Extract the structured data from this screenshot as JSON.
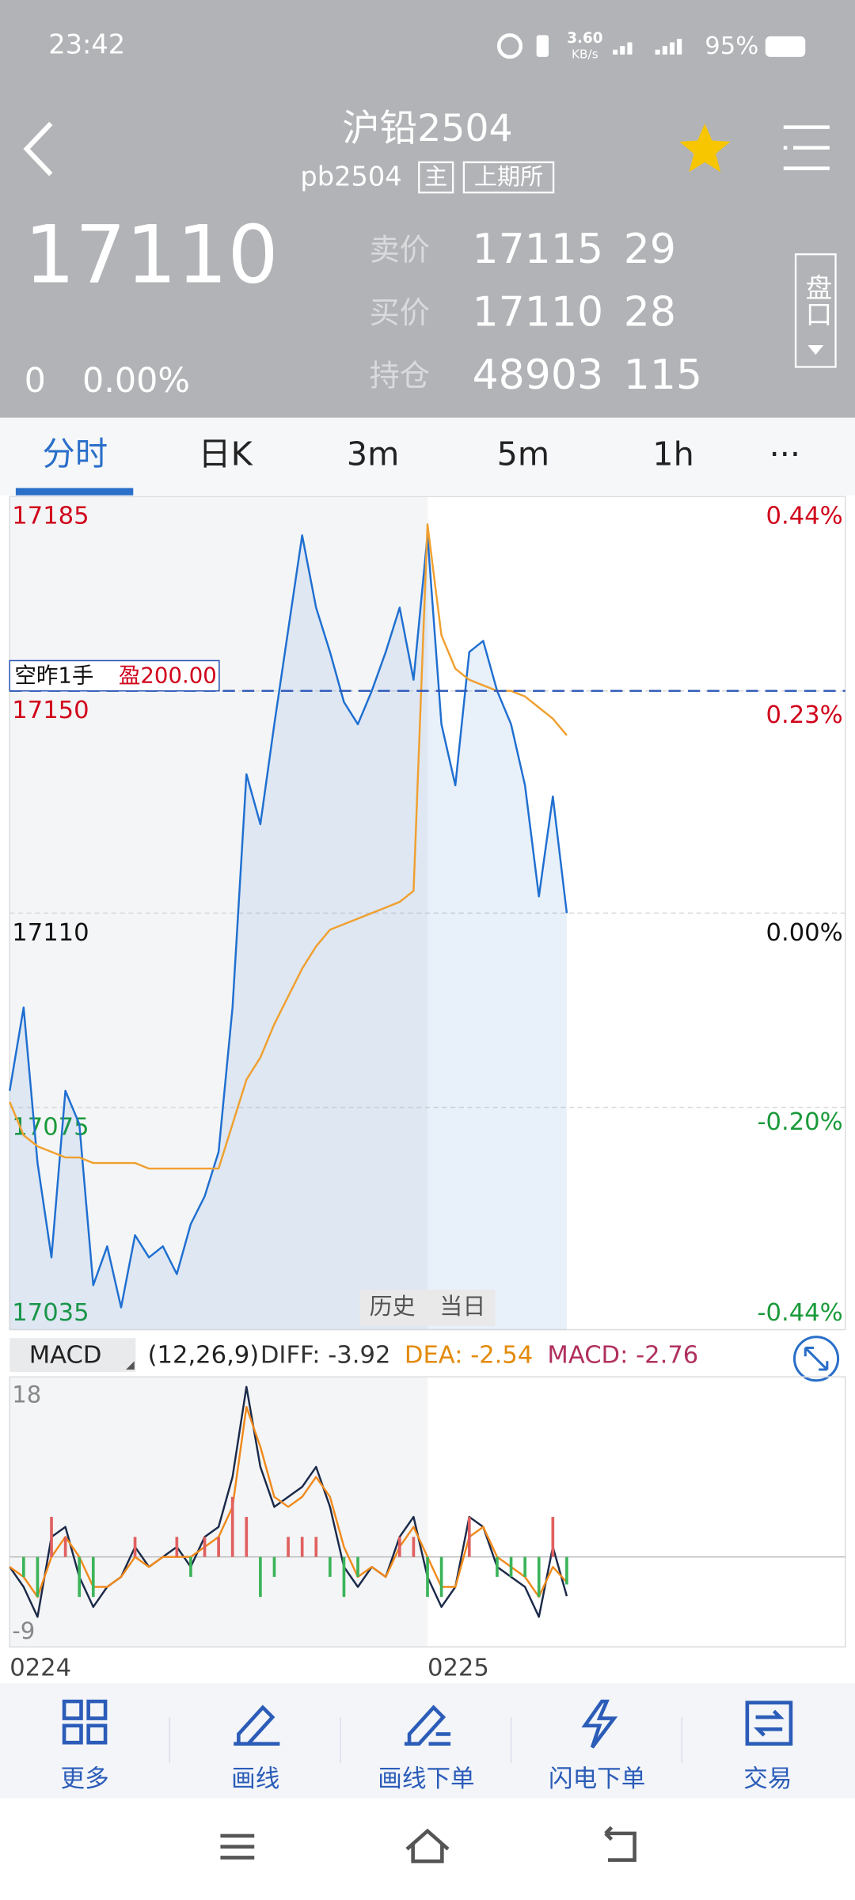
{
  "status_bar": {
    "time": "23:42",
    "speed": "3.60",
    "speed_unit": "KB/s",
    "battery": "95%"
  },
  "header": {
    "title": "沪铅2504",
    "code": "pb2504",
    "badges": [
      "主",
      "上期所"
    ],
    "side_button": "盘口"
  },
  "quote": {
    "last": "17110",
    "change": "0",
    "change_pct": "0.00%",
    "rows": [
      {
        "label": "卖价",
        "price": "17115",
        "qty": "29"
      },
      {
        "label": "买价",
        "price": "17110",
        "qty": "28"
      },
      {
        "label": "持仓",
        "price": "48903",
        "qty": "115"
      }
    ]
  },
  "tabs": [
    "分时",
    "日K",
    "3m",
    "5m",
    "1h",
    "···"
  ],
  "chart_data": [
    {
      "type": "line",
      "ylim": [
        17035,
        17185
      ],
      "yticks": [
        17185,
        17150,
        17110,
        17075,
        17035
      ],
      "y2lim": [
        -0.44,
        0.44
      ],
      "y2ticks": [
        {
          "value": 0.44,
          "label": "0.44%"
        },
        {
          "value": 0.23,
          "label": "0.23%"
        },
        {
          "value": 0,
          "label": "0.00%"
        },
        {
          "value": -0.2,
          "label": "-0.20%"
        },
        {
          "value": -0.44,
          "label": "-0.44%"
        }
      ],
      "grid": true,
      "up_color": "#d0021b",
      "down_color": "#1a9a3a",
      "series": [
        {
          "color": "#1f6fd1",
          "values": [
            17078,
            17093,
            17065,
            17048,
            17078,
            17072,
            17043,
            17050,
            17039,
            17052,
            17048,
            17050,
            17045,
            17054,
            17059,
            17067,
            17093,
            17135,
            17126,
            17144,
            17161,
            17178,
            17165,
            17157,
            17148,
            17144,
            17150,
            17157,
            17165,
            17152,
            17178,
            17144,
            17133,
            17157,
            17159,
            17150,
            17144,
            17133,
            17113,
            17131,
            17110,
            null,
            null,
            null,
            null,
            null,
            null,
            null,
            null,
            null,
            null,
            null,
            null,
            null,
            null,
            null,
            null,
            null,
            null,
            null
          ]
        },
        {
          "color": "#f0a030",
          "values": [
            17076,
            17070,
            17068,
            17067,
            17066,
            17066,
            17065,
            17065,
            17065,
            17065,
            17064,
            17064,
            17064,
            17064,
            17064,
            17064,
            17072,
            17080,
            17084,
            17090,
            17095,
            17100,
            17104,
            17107,
            17108,
            17109,
            17110,
            17111,
            17112,
            17114,
            17180,
            17160,
            17154,
            17152,
            17151,
            17150,
            17150,
            17149,
            17147,
            17145,
            17142,
            null,
            null,
            null,
            null,
            null,
            null,
            null,
            null,
            null,
            null,
            null,
            null,
            null,
            null,
            null,
            null,
            null,
            null,
            null
          ]
        }
      ],
      "position": {
        "label": "空昨1手",
        "pnl": "盈200.00",
        "price": 17150,
        "color": "#2a55b8"
      }
    },
    {
      "type": "macd",
      "indicator": "MACD",
      "params": "(12,26,9)",
      "readout": [
        {
          "text": "DIFF: -3.92",
          "color": "#333333"
        },
        {
          "text": "DEA: -2.54",
          "color": "#e38a0b"
        },
        {
          "text": "MACD: -2.76",
          "color": "#b0315f"
        }
      ],
      "ylim": [
        -9,
        18
      ],
      "yticks": [
        18,
        -9
      ],
      "categories": [
        "0224",
        null,
        null,
        null,
        null,
        null,
        null,
        null,
        null,
        null,
        null,
        null,
        null,
        null,
        null,
        null,
        null,
        null,
        null,
        null,
        null,
        null,
        null,
        null,
        null,
        null,
        null,
        null,
        null,
        null,
        "0225",
        null,
        null,
        null,
        null,
        null,
        null,
        null,
        null,
        null,
        null,
        null,
        null,
        null,
        null,
        null,
        null,
        null,
        null,
        null,
        null,
        null,
        null,
        null,
        null,
        null,
        null,
        null,
        null,
        null
      ],
      "series": [
        {
          "color": "#1b2a4a",
          "values": [
            -1,
            -3,
            -6,
            2,
            3,
            -2,
            -5,
            -3,
            -2,
            1,
            -1,
            0,
            1,
            -1,
            2,
            3,
            8,
            17,
            9,
            5,
            6,
            7,
            9,
            5,
            -1,
            -3,
            -1,
            -2,
            2,
            4,
            -2,
            -5,
            -3,
            4,
            3,
            -1,
            -2,
            -3,
            -6,
            1,
            -3.92,
            null,
            null,
            null,
            null,
            null,
            null,
            null,
            null,
            null,
            null,
            null,
            null,
            null,
            null,
            null,
            null,
            null,
            null,
            null
          ]
        },
        {
          "color": "#f08a1c",
          "values": [
            -1,
            -2,
            -4,
            0,
            2,
            0,
            -3,
            -3,
            -2,
            0,
            -1,
            0,
            0,
            0,
            1,
            2,
            5,
            15,
            11,
            6,
            5,
            6,
            8,
            6,
            1,
            -2,
            -1,
            -2,
            1,
            3,
            0,
            -3,
            -3,
            2,
            3,
            0,
            -1,
            -2,
            -4,
            -1,
            -2.54,
            null,
            null,
            null,
            null,
            null,
            null,
            null,
            null,
            null,
            null,
            null,
            null,
            null,
            null,
            null,
            null,
            null,
            null,
            null
          ]
        },
        {
          "bars": true,
          "up_color": "#e06060",
          "down_color": "#3cb45a",
          "values": [
            0,
            -2,
            -4,
            4,
            2,
            -4,
            -4,
            0,
            0,
            2,
            0,
            0,
            2,
            -2,
            2,
            2,
            6,
            4,
            -4,
            -2,
            2,
            2,
            2,
            -2,
            -4,
            -2,
            0,
            0,
            2,
            2,
            -4,
            -4,
            0,
            4,
            0,
            -2,
            -2,
            -2,
            -4,
            4,
            -2.76,
            null,
            null,
            null,
            null,
            null,
            null,
            null,
            null,
            null,
            null,
            null,
            null,
            null,
            null,
            null,
            null,
            null,
            null,
            null
          ]
        }
      ]
    }
  ],
  "chart_buttons": [
    "历史",
    "当日"
  ],
  "toolbar": [
    "更多",
    "画线",
    "画线下单",
    "闪电下单",
    "交易"
  ]
}
